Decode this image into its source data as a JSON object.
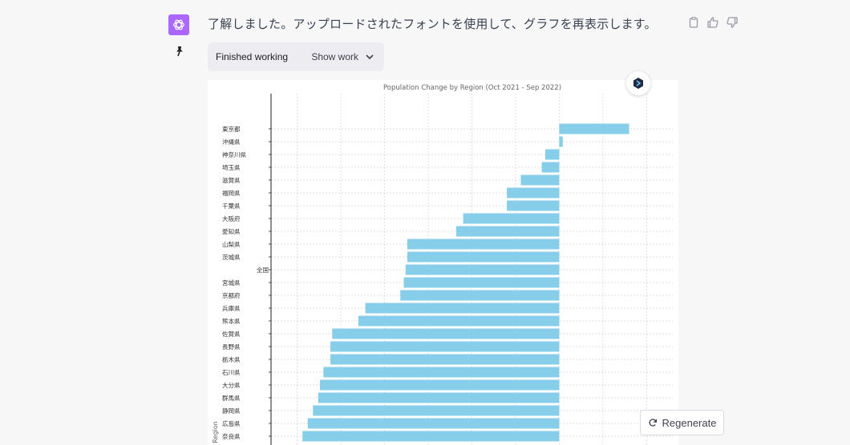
{
  "message": {
    "text": "了解しました。アップロードされたフォントを使用して、グラフを再表示します。"
  },
  "working": {
    "status": "Finished working",
    "toggle": "Show work"
  },
  "regenerate": {
    "label": "Regenerate"
  },
  "icons": {
    "avatar": "openai-logo-icon",
    "pin": "pin-icon",
    "copy": "clipboard-icon",
    "like": "thumbs-up-icon",
    "dislike": "thumbs-down-icon",
    "badge": "plugin-cube-icon",
    "regen": "refresh-icon"
  },
  "colors": {
    "avatar_bg": "#ab68ff",
    "bar": "#87ceeb"
  },
  "chart_data": {
    "type": "bar",
    "orientation": "horizontal",
    "title": "Population Change by Region (Oct 2021 - Sep 2022)",
    "xlabel": "",
    "ylabel": "Region",
    "xlim": [
      -0.0165,
      0.0065
    ],
    "grid": true,
    "categories": [
      "東京都",
      "沖縄県",
      "神奈川県",
      "埼玉県",
      "滋賀県",
      "福岡県",
      "千葉県",
      "大阪府",
      "愛知県",
      "山梨県",
      "茨城県",
      "全国",
      "宮城県",
      "京都府",
      "兵庫県",
      "熊本県",
      "佐賀県",
      "長野県",
      "栃木県",
      "石川県",
      "大分県",
      "群馬県",
      "静岡県",
      "広島県",
      "奈良県"
    ],
    "values": [
      0.004,
      0.0002,
      -0.0008,
      -0.001,
      -0.0022,
      -0.003,
      -0.003,
      -0.0055,
      -0.0059,
      -0.0087,
      -0.0087,
      -0.0088,
      -0.0089,
      -0.0091,
      -0.0111,
      -0.0115,
      -0.013,
      -0.0131,
      -0.0131,
      -0.0135,
      -0.0137,
      -0.0138,
      -0.0141,
      -0.0144,
      -0.0147
    ]
  }
}
